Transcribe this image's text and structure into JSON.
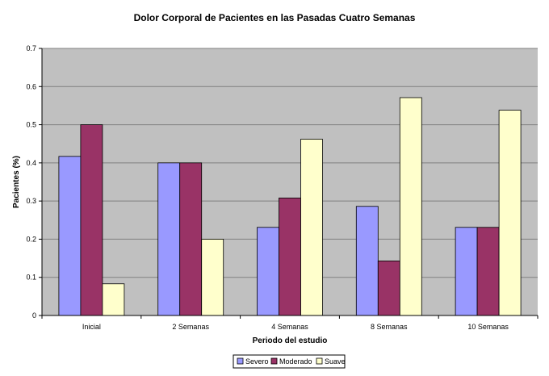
{
  "chart_data": {
    "type": "bar",
    "title": "Dolor Corporal de Pacientes en las Pasadas Cuatro Semanas",
    "xlabel": "Periodo del estudio",
    "ylabel": "Pacientes (%)",
    "categories": [
      "Inicial",
      "2 Semanas",
      "4 Semanas",
      "8 Semanas",
      "10 Semanas"
    ],
    "ylim": [
      0,
      0.7
    ],
    "yticks": [
      0,
      0.1,
      0.2,
      0.3,
      0.4,
      0.5,
      0.6,
      0.7
    ],
    "ytick_labels": [
      "0",
      "0.1",
      "0.2",
      "0.3",
      "0.4",
      "0.5",
      "0.6",
      "0.7"
    ],
    "grid": true,
    "legend_position": "bottom",
    "series": [
      {
        "name": "Severo",
        "color": "#9999ff",
        "values": [
          0.417,
          0.4,
          0.231,
          0.286,
          0.231
        ]
      },
      {
        "name": "Moderado",
        "color": "#993366",
        "values": [
          0.5,
          0.4,
          0.308,
          0.143,
          0.231
        ]
      },
      {
        "name": "Suave",
        "color": "#ffffcc",
        "values": [
          0.083,
          0.2,
          0.462,
          0.571,
          0.538
        ]
      }
    ],
    "plot_background": "#c0c0c0"
  }
}
